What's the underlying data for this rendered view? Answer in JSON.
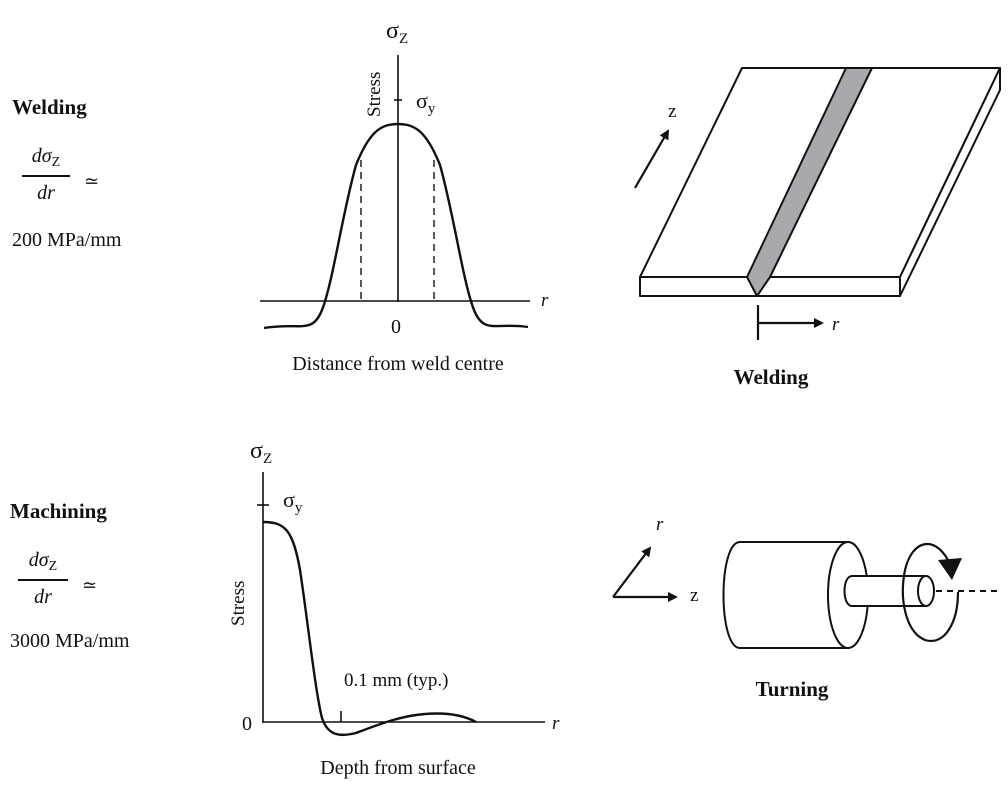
{
  "welding": {
    "title": "Welding",
    "gradient_num": "dσ",
    "gradient_num_sub": "Z",
    "gradient_den": "dr",
    "approx": "≃",
    "gradient_value": "200 MPa/mm",
    "axis_top": "σ",
    "axis_top_sub": "Z",
    "yield_label": "σ",
    "yield_sub": "y",
    "stress_label": "Stress",
    "r_label": "r",
    "zero_label": "0",
    "x_caption": "Distance from weld centre",
    "sketch_caption": "Welding",
    "sketch_z": "z",
    "sketch_r": "r"
  },
  "machining": {
    "title": "Machining",
    "gradient_num": "dσ",
    "gradient_num_sub": "Z",
    "gradient_den": "dr",
    "approx": "≃",
    "gradient_value": "3000 MPa/mm",
    "axis_top": "σ",
    "axis_top_sub": "Z",
    "yield_label": "σ",
    "yield_sub": "y",
    "stress_label": "Stress",
    "r_label": "r",
    "zero_label": "0",
    "depth_note": "0.1 mm (typ.)",
    "x_caption": "Depth from surface",
    "sketch_caption": "Turning",
    "sketch_r": "r",
    "sketch_z": "z"
  }
}
